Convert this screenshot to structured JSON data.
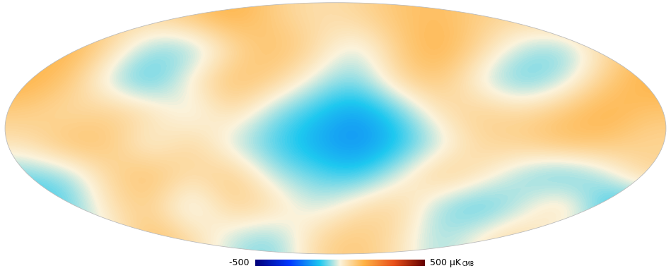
{
  "chart_data": {
    "type": "heatmap",
    "cells": [
      [
        100,
        120,
        80,
        60,
        100,
        150,
        80,
        40,
        60,
        100,
        120,
        80,
        60,
        100,
        120,
        100
      ],
      [
        120,
        150,
        60,
        -60,
        -80,
        40,
        120,
        60,
        -40,
        80,
        150,
        60,
        -40,
        -80,
        40,
        120
      ],
      [
        150,
        100,
        -40,
        -120,
        20,
        120,
        80,
        -20,
        -80,
        60,
        100,
        -20,
        -100,
        -40,
        80,
        150
      ],
      [
        80,
        40,
        80,
        60,
        -40,
        60,
        -60,
        -120,
        -180,
        -100,
        40,
        80,
        60,
        100,
        150,
        100
      ],
      [
        40,
        120,
        100,
        -20,
        80,
        -40,
        -100,
        -160,
        -200,
        -140,
        -40,
        60,
        80,
        120,
        100,
        60
      ],
      [
        -80,
        -60,
        60,
        120,
        40,
        100,
        -40,
        -80,
        -120,
        -20,
        100,
        40,
        -60,
        -120,
        -40,
        80
      ],
      [
        -120,
        -100,
        40,
        80,
        -60,
        80,
        60,
        -40,
        40,
        80,
        -60,
        -120,
        -40,
        80,
        -120,
        -140
      ],
      [
        60,
        -60,
        -20,
        120,
        60,
        -40,
        -80,
        60,
        100,
        40,
        -60,
        20,
        80,
        -40,
        -60,
        -80
      ]
    ],
    "colorbar": {
      "range": [
        -500,
        500
      ],
      "ticks": [
        -500,
        500
      ]
    },
    "unit": "μK",
    "unit_subscript": "CMB"
  }
}
